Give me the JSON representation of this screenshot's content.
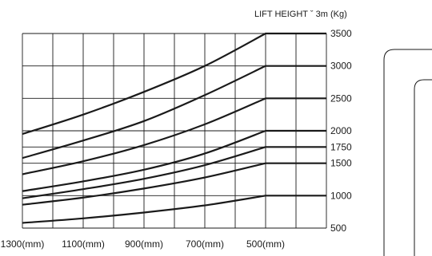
{
  "chart_data": {
    "type": "line",
    "title": "LIFT HEIGHT ˇ 3m",
    "unit": "(Kg)",
    "x_ticks": [
      "1300(mm)",
      "1100(mm)",
      "900(mm)",
      "700(mm)",
      "500(mm)"
    ],
    "y_ticks": [
      "3500",
      "3000",
      "2500",
      "2000",
      "1750",
      "1500",
      "1000",
      "500"
    ],
    "x_tick_values": [
      1300,
      1100,
      900,
      700,
      500
    ],
    "y_tick_values": [
      3500,
      3000,
      2500,
      2000,
      1750,
      1500,
      1000,
      500
    ],
    "xlim": [
      1300,
      300
    ],
    "ylim": [
      500,
      3500
    ],
    "grid": true,
    "series": [
      {
        "x": [
          1300,
          1100,
          900,
          700,
          500,
          300
        ],
        "values": [
          1950,
          2250,
          2600,
          3000,
          3500,
          3500
        ]
      },
      {
        "x": [
          1300,
          1100,
          900,
          700,
          500,
          300
        ],
        "values": [
          1580,
          1850,
          2150,
          2550,
          3000,
          3000
        ]
      },
      {
        "x": [
          1300,
          1100,
          900,
          700,
          500,
          300
        ],
        "values": [
          1330,
          1530,
          1780,
          2100,
          2500,
          2500
        ]
      },
      {
        "x": [
          1300,
          1100,
          900,
          700,
          500,
          300
        ],
        "values": [
          1070,
          1220,
          1400,
          1650,
          2000,
          2000
        ]
      },
      {
        "x": [
          1300,
          1100,
          900,
          700,
          500,
          300
        ],
        "values": [
          960,
          1100,
          1260,
          1470,
          1750,
          1750
        ]
      },
      {
        "x": [
          1300,
          1100,
          900,
          700,
          500,
          300
        ],
        "values": [
          860,
          970,
          1110,
          1280,
          1500,
          1500
        ]
      },
      {
        "x": [
          1300,
          1100,
          900,
          700,
          500,
          300
        ],
        "values": [
          580,
          650,
          740,
          850,
          1000,
          1000
        ]
      }
    ]
  }
}
